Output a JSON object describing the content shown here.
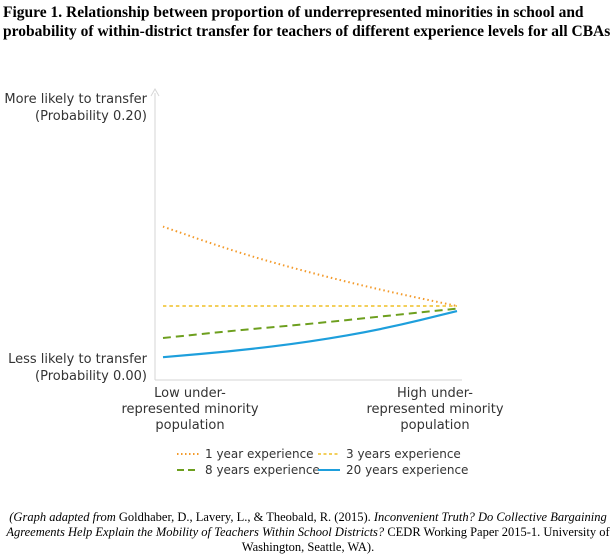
{
  "figure": {
    "title": "Figure 1. Relationship between proportion of underrepresented minorities in school and probability of within-district transfer for teachers of different experience levels for all CBAs"
  },
  "chart_data": {
    "type": "line",
    "title": "Figure 1. Relationship between proportion of underrepresented minorities in school and probability of within-district transfer for teachers of different experience levels for all CBAs",
    "xlabel": "",
    "ylabel": "",
    "x": [
      0,
      0.25,
      0.5,
      0.75,
      1
    ],
    "x_tick_labels": [
      [
        "Low under-",
        "represented minority",
        "population"
      ],
      [
        "High under-",
        "represented minority",
        "population"
      ]
    ],
    "y_tick_labels": [
      [
        "More likely to transfer",
        "(Probability 0.20)"
      ],
      [
        "Less likely to transfer",
        "(Probability 0.00)"
      ]
    ],
    "ylim": [
      0,
      0.2
    ],
    "grid": false,
    "legend_position": "bottom",
    "series": [
      {
        "name": "1 year experience",
        "color": "#f39a2a",
        "dash": "dotted",
        "values": [
          0.112,
          0.092,
          0.076,
          0.062,
          0.05
        ]
      },
      {
        "name": "3 years experience",
        "color": "#f3cf5b",
        "dash": "dashed",
        "values": [
          0.05,
          0.05,
          0.05,
          0.05,
          0.05
        ]
      },
      {
        "name": "8 years experience",
        "color": "#6d9f1e",
        "dash": "longdash",
        "values": [
          0.025,
          0.031,
          0.036,
          0.042,
          0.048
        ]
      },
      {
        "name": "20 years experience",
        "color": "#1e9fdc",
        "dash": "solid",
        "values": [
          0.01,
          0.015,
          0.022,
          0.032,
          0.046
        ]
      }
    ]
  },
  "caption": {
    "source_intro": "(Graph adapted from",
    "authors": " Goldhaber, D., Lavery, L., & Theobald, R. (2015). ",
    "paper_title": "Inconvenient Truth? Do Collective Bargaining Agreements Help Explain the Mobility of Teachers Within School Districts?",
    "series_info": " CEDR Working Paper 2015-1. University of Washington, Seattle, WA)."
  }
}
